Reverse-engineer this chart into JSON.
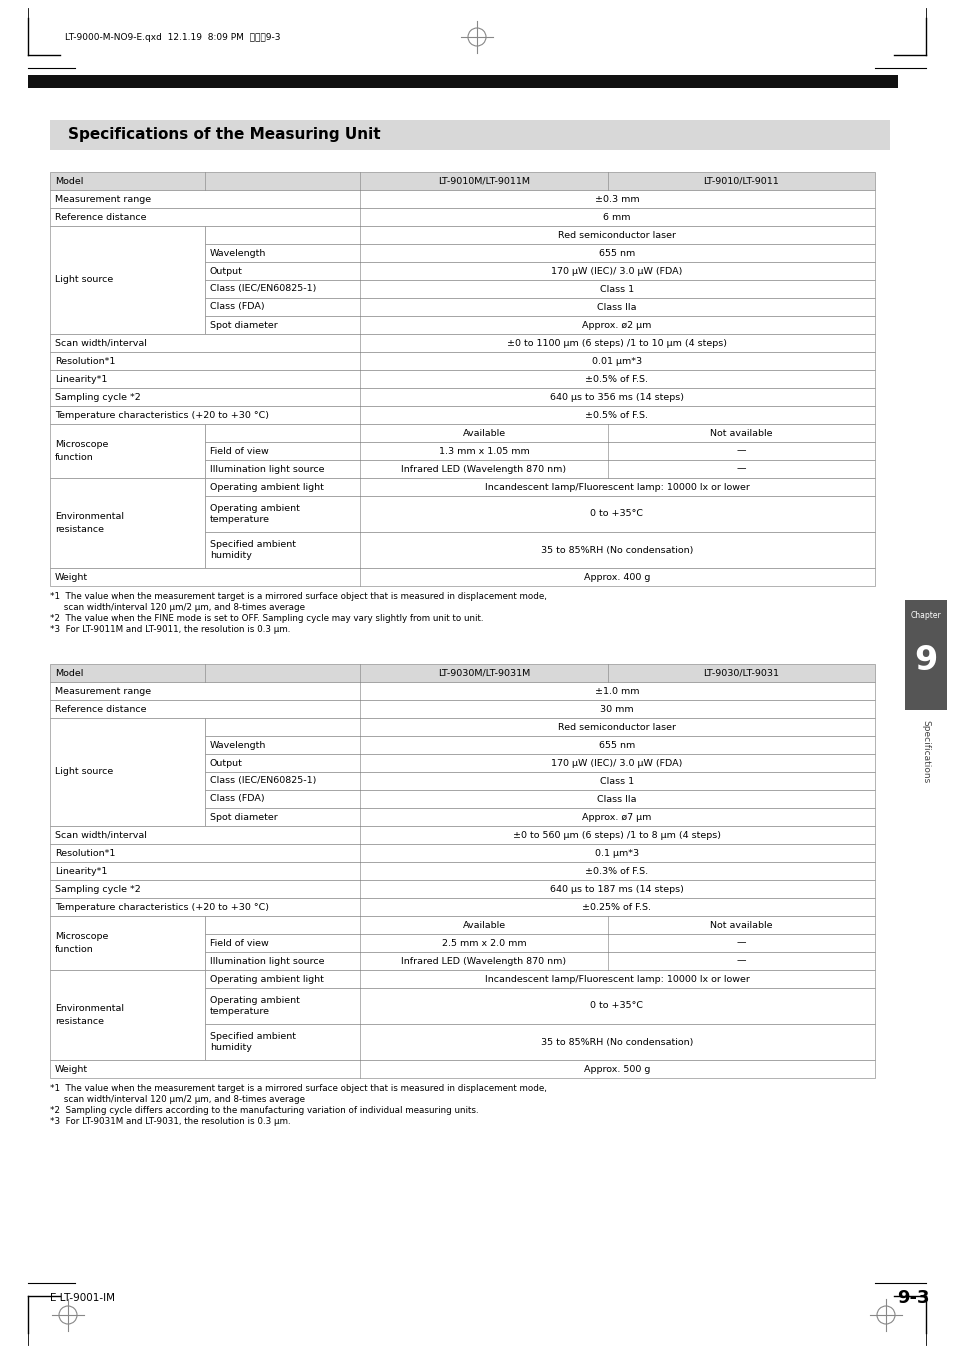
{
  "page_header": "LT-9000-M-NO9-E.qxd  12.1.19  8:09 PM  ページ9-3",
  "section_title": "Specifications of the Measuring Unit",
  "footer_left": "E LT-9001-IM",
  "footer_right": "9-3",
  "table1": {
    "rows": [
      {
        "cells": [
          "Model",
          "",
          "LT-9010M/LT-9011M",
          "LT-9010/LT-9011"
        ],
        "type": "header"
      },
      {
        "cells": [
          "Measurement range",
          "",
          "±0.3 mm",
          ""
        ],
        "type": "normal",
        "span23": true
      },
      {
        "cells": [
          "Reference distance",
          "",
          "6 mm",
          ""
        ],
        "type": "normal",
        "span23": true
      },
      {
        "cells": [
          "Light source",
          "",
          "Red semiconductor laser",
          ""
        ],
        "type": "group_start",
        "span23": true
      },
      {
        "cells": [
          "",
          "Wavelength",
          "655 nm",
          ""
        ],
        "type": "sub",
        "span23": true
      },
      {
        "cells": [
          "",
          "Output",
          "170 μW (IEC)/ 3.0 μW (FDA)",
          ""
        ],
        "type": "sub",
        "span23": true
      },
      {
        "cells": [
          "",
          "Class (IEC/EN60825-1)",
          "Class 1",
          ""
        ],
        "type": "sub",
        "span23": true
      },
      {
        "cells": [
          "",
          "Class (FDA)",
          "Class IIa",
          ""
        ],
        "type": "sub",
        "span23": true
      },
      {
        "cells": [
          "",
          "Spot diameter",
          "Approx. ø2 μm",
          ""
        ],
        "type": "sub_last",
        "span23": true
      },
      {
        "cells": [
          "Scan width/interval",
          "",
          "±0 to 1100 μm (6 steps) /1 to 10 μm (4 steps)",
          ""
        ],
        "type": "normal",
        "span23": true
      },
      {
        "cells": [
          "Resolution*1",
          "",
          "0.01 μm*3",
          ""
        ],
        "type": "normal",
        "span23": true
      },
      {
        "cells": [
          "Linearity*1",
          "",
          "±0.5% of F.S.",
          ""
        ],
        "type": "normal",
        "span23": true
      },
      {
        "cells": [
          "Sampling cycle *2",
          "",
          "640 μs to 356 ms (14 steps)",
          ""
        ],
        "type": "normal",
        "span23": true
      },
      {
        "cells": [
          "Temperature characteristics (+20 to +30 °C)",
          "",
          "±0.5% of F.S.",
          ""
        ],
        "type": "normal",
        "span23": true
      },
      {
        "cells": [
          "Microscope\nfunction",
          "",
          "Available",
          "Not available"
        ],
        "type": "micro_header"
      },
      {
        "cells": [
          "",
          "Field of view",
          "1.3 mm x 1.05 mm",
          "—"
        ],
        "type": "sub"
      },
      {
        "cells": [
          "",
          "Illumination light source",
          "Infrared LED (Wavelength 870 nm)",
          "—"
        ],
        "type": "sub_last"
      },
      {
        "cells": [
          "Environmental\nresistance",
          "Operating ambient light",
          "Incandescent lamp/Fluorescent lamp: 10000 lx or lower",
          ""
        ],
        "type": "env_sub",
        "span23": true
      },
      {
        "cells": [
          "",
          "Operating ambient\ntemperature",
          "0 to +35°C",
          ""
        ],
        "type": "env_sub",
        "span23": true,
        "double_h": true
      },
      {
        "cells": [
          "",
          "Specified ambient\nhumidity",
          "35 to 85%RH (No condensation)",
          ""
        ],
        "type": "env_sub_last",
        "span23": true,
        "double_h": true
      },
      {
        "cells": [
          "Weight",
          "",
          "Approx. 400 g",
          ""
        ],
        "type": "normal",
        "span23": true
      }
    ],
    "footnotes": [
      "*1  The value when the measurement target is a mirrored surface object that is measured in displacement mode,",
      "     scan width/interval 120 μm/2 μm, and 8-times average",
      "*2  The value when the FINE mode is set to OFF. Sampling cycle may vary slightly from unit to unit.",
      "*3  For LT-9011M and LT-9011, the resolution is 0.3 μm."
    ]
  },
  "table2": {
    "rows": [
      {
        "cells": [
          "Model",
          "",
          "LT-9030M/LT-9031M",
          "LT-9030/LT-9031"
        ],
        "type": "header"
      },
      {
        "cells": [
          "Measurement range",
          "",
          "±1.0 mm",
          ""
        ],
        "type": "normal",
        "span23": true
      },
      {
        "cells": [
          "Reference distance",
          "",
          "30 mm",
          ""
        ],
        "type": "normal",
        "span23": true
      },
      {
        "cells": [
          "Light source",
          "",
          "Red semiconductor laser",
          ""
        ],
        "type": "group_start",
        "span23": true
      },
      {
        "cells": [
          "",
          "Wavelength",
          "655 nm",
          ""
        ],
        "type": "sub",
        "span23": true
      },
      {
        "cells": [
          "",
          "Output",
          "170 μW (IEC)/ 3.0 μW (FDA)",
          ""
        ],
        "type": "sub",
        "span23": true
      },
      {
        "cells": [
          "",
          "Class (IEC/EN60825-1)",
          "Class 1",
          ""
        ],
        "type": "sub",
        "span23": true
      },
      {
        "cells": [
          "",
          "Class (FDA)",
          "Class IIa",
          ""
        ],
        "type": "sub",
        "span23": true
      },
      {
        "cells": [
          "",
          "Spot diameter",
          "Approx. ø7 μm",
          ""
        ],
        "type": "sub_last",
        "span23": true
      },
      {
        "cells": [
          "Scan width/interval",
          "",
          "±0 to 560 μm (6 steps) /1 to 8 μm (4 steps)",
          ""
        ],
        "type": "normal",
        "span23": true
      },
      {
        "cells": [
          "Resolution*1",
          "",
          "0.1 μm*3",
          ""
        ],
        "type": "normal",
        "span23": true
      },
      {
        "cells": [
          "Linearity*1",
          "",
          "±0.3% of F.S.",
          ""
        ],
        "type": "normal",
        "span23": true
      },
      {
        "cells": [
          "Sampling cycle *2",
          "",
          "640 μs to 187 ms (14 steps)",
          ""
        ],
        "type": "normal",
        "span23": true
      },
      {
        "cells": [
          "Temperature characteristics (+20 to +30 °C)",
          "",
          "±0.25% of F.S.",
          ""
        ],
        "type": "normal",
        "span23": true
      },
      {
        "cells": [
          "Microscope\nfunction",
          "",
          "Available",
          "Not available"
        ],
        "type": "micro_header"
      },
      {
        "cells": [
          "",
          "Field of view",
          "2.5 mm x 2.0 mm",
          "—"
        ],
        "type": "sub"
      },
      {
        "cells": [
          "",
          "Illumination light source",
          "Infrared LED (Wavelength 870 nm)",
          "—"
        ],
        "type": "sub_last"
      },
      {
        "cells": [
          "Environmental\nresistance",
          "Operating ambient light",
          "Incandescent lamp/Fluorescent lamp: 10000 lx or lower",
          ""
        ],
        "type": "env_sub",
        "span23": true
      },
      {
        "cells": [
          "",
          "Operating ambient\ntemperature",
          "0 to +35°C",
          ""
        ],
        "type": "env_sub",
        "span23": true,
        "double_h": true
      },
      {
        "cells": [
          "",
          "Specified ambient\nhumidity",
          "35 to 85%RH (No condensation)",
          ""
        ],
        "type": "env_sub_last",
        "span23": true,
        "double_h": true
      },
      {
        "cells": [
          "Weight",
          "",
          "Approx. 500 g",
          ""
        ],
        "type": "normal",
        "span23": true
      }
    ],
    "footnotes": [
      "*1  The value when the measurement target is a mirrored surface object that is measured in displacement mode,",
      "     scan width/interval 120 μm/2 μm, and 8-times average",
      "*2  Sampling cycle differs according to the manufacturing variation of individual measuring units.",
      "*3  For LT-9031M and LT-9031, the resolution is 0.3 μm."
    ]
  }
}
